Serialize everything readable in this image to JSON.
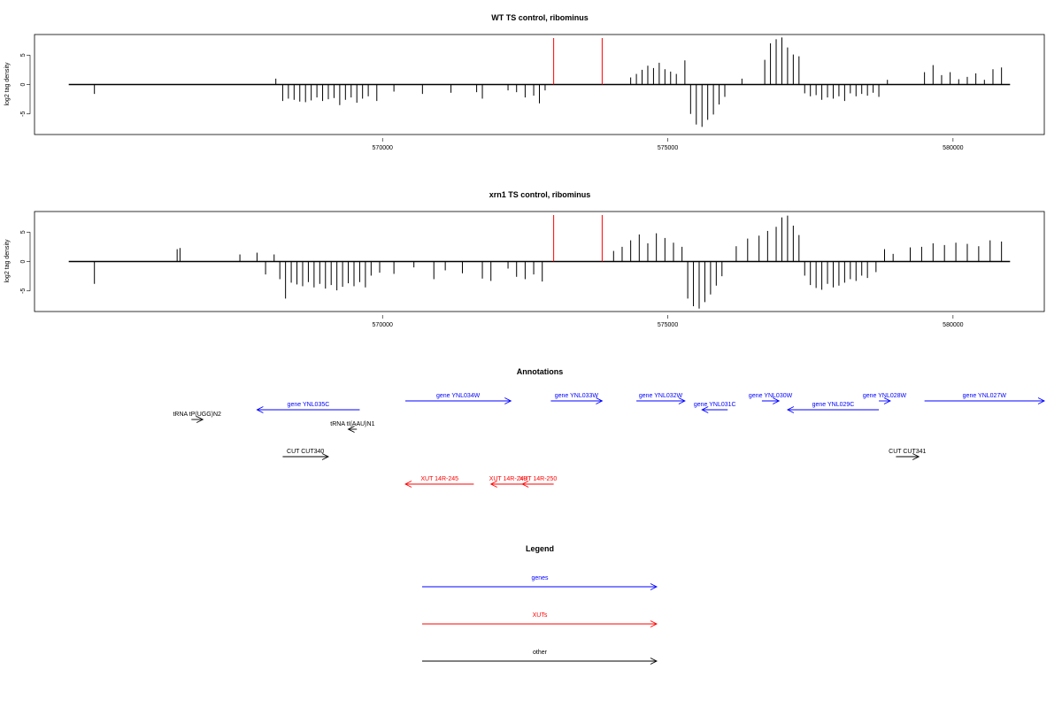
{
  "chart_data": [
    {
      "type": "bar",
      "title": "WT TS control, ribominus",
      "ylabel": "log2 tag density",
      "xlabel": "",
      "xlim": [
        563900,
        581600
      ],
      "ylim": [
        -8.5,
        8.5
      ],
      "x_ticks": [
        570000,
        575000,
        580000
      ],
      "x_tick_labels": [
        "570000",
        "575000",
        "580000"
      ],
      "y_ticks": [
        -5,
        0,
        5
      ],
      "y_tick_labels": [
        "-5",
        "0",
        "5"
      ],
      "baseline": [
        564500,
        581000
      ],
      "markers": [
        573000,
        573850
      ],
      "marker_color": "#ff0000",
      "bar_color": "#000000",
      "x": [
        564950,
        568130,
        568250,
        568350,
        568450,
        568550,
        568650,
        568750,
        568850,
        568950,
        569050,
        569150,
        569250,
        569350,
        569450,
        569550,
        569650,
        569750,
        569900,
        570200,
        570700,
        571200,
        571650,
        571750,
        572200,
        572350,
        572500,
        572650,
        572750,
        572850,
        574350,
        574450,
        574550,
        574650,
        574750,
        574850,
        574950,
        575050,
        575150,
        575300,
        575400,
        575500,
        575600,
        575700,
        575800,
        575900,
        576000,
        576300,
        576700,
        576800,
        576900,
        577000,
        577100,
        577200,
        577300,
        577400,
        577500,
        577600,
        577700,
        577800,
        577900,
        578000,
        578100,
        578200,
        578300,
        578400,
        578500,
        578600,
        578700,
        578850,
        579500,
        579650,
        579800,
        579950,
        580100,
        580250,
        580400,
        580550,
        580700,
        580850
      ],
      "values": [
        -1.6,
        1.0,
        -2.8,
        -2.4,
        -2.6,
        -2.9,
        -3.0,
        -2.7,
        -2.2,
        -2.8,
        -2.5,
        -2.3,
        -3.5,
        -2.6,
        -2.2,
        -3.1,
        -2.4,
        -2.0,
        -2.8,
        -1.2,
        -1.6,
        -1.4,
        -1.3,
        -2.4,
        -1.0,
        -1.3,
        -2.2,
        -1.9,
        -3.2,
        -1.0,
        1.2,
        1.8,
        2.5,
        3.2,
        2.8,
        3.7,
        2.6,
        2.2,
        1.8,
        4.1,
        -5.0,
        -6.8,
        -7.2,
        -6.0,
        -5.1,
        -3.4,
        -2.1,
        1.0,
        4.2,
        7.0,
        7.7,
        8.0,
        6.3,
        5.1,
        4.8,
        -1.5,
        -2.0,
        -1.8,
        -2.6,
        -2.2,
        -2.4,
        -2.0,
        -2.8,
        -1.5,
        -2.0,
        -1.6,
        -1.9,
        -1.4,
        -2.1,
        0.8,
        2.1,
        3.3,
        1.6,
        2.1,
        0.9,
        1.3,
        1.9,
        0.8,
        2.6,
        2.9
      ]
    },
    {
      "type": "bar",
      "title": "xrn1 TS control, ribominus",
      "ylabel": "log2 tag density",
      "xlabel": "",
      "xlim": [
        563900,
        581600
      ],
      "ylim": [
        -8.5,
        8.5
      ],
      "x_ticks": [
        570000,
        575000,
        580000
      ],
      "x_tick_labels": [
        "570000",
        "575000",
        "580000"
      ],
      "y_ticks": [
        -5,
        0,
        5
      ],
      "y_tick_labels": [
        "-5",
        "0",
        "5"
      ],
      "baseline": [
        564500,
        581000
      ],
      "markers": [
        573000,
        573850
      ],
      "marker_color": "#ff0000",
      "bar_color": "#000000",
      "x": [
        564950,
        566400,
        566450,
        567500,
        567800,
        567950,
        568100,
        568200,
        568300,
        568400,
        568500,
        568600,
        568700,
        568800,
        568900,
        569000,
        569100,
        569200,
        569300,
        569400,
        569500,
        569600,
        569700,
        569800,
        569950,
        570200,
        570550,
        570900,
        571100,
        571400,
        571750,
        571900,
        572200,
        572350,
        572500,
        572650,
        572800,
        574050,
        574200,
        574350,
        574500,
        574650,
        574800,
        574950,
        575100,
        575250,
        575350,
        575450,
        575550,
        575650,
        575750,
        575850,
        575950,
        576200,
        576400,
        576600,
        576750,
        576900,
        577000,
        577100,
        577200,
        577300,
        577400,
        577500,
        577600,
        577700,
        577800,
        577900,
        578000,
        578100,
        578200,
        578300,
        578400,
        578500,
        578650,
        578800,
        578950,
        579250,
        579450,
        579650,
        579850,
        580050,
        580250,
        580450,
        580650,
        580850
      ],
      "values": [
        -3.8,
        2.1,
        2.3,
        1.2,
        1.5,
        -2.2,
        1.2,
        -3.0,
        -6.3,
        -3.6,
        -3.9,
        -4.2,
        -3.5,
        -4.4,
        -3.8,
        -4.6,
        -4.0,
        -4.9,
        -4.3,
        -3.7,
        -4.2,
        -3.5,
        -4.4,
        -2.4,
        -1.9,
        -2.1,
        -1.0,
        -3.0,
        -1.5,
        -2.0,
        -2.9,
        -3.3,
        -1.2,
        -2.6,
        -3.0,
        -2.2,
        -3.4,
        1.8,
        2.5,
        3.6,
        4.6,
        3.1,
        4.8,
        4.0,
        3.2,
        2.5,
        -6.3,
        -7.6,
        -8.0,
        -6.9,
        -5.6,
        -4.1,
        -2.5,
        2.6,
        3.9,
        4.4,
        5.2,
        5.9,
        7.5,
        7.8,
        6.1,
        4.5,
        -2.4,
        -4.0,
        -4.5,
        -4.8,
        -3.8,
        -4.4,
        -4.1,
        -3.6,
        -3.0,
        -3.3,
        -2.4,
        -2.8,
        -1.8,
        2.1,
        1.3,
        2.4,
        2.5,
        3.1,
        2.8,
        3.2,
        3.0,
        2.6,
        3.6,
        3.4
      ]
    }
  ],
  "annotations": {
    "title": "Annotations",
    "features": [
      {
        "label": "tRNA tP(UGG)N2",
        "color": "#000000",
        "start": 566650,
        "end": 566850,
        "dir": "+",
        "row": 3
      },
      {
        "label": "gene YNL035C",
        "color": "#0000ff",
        "start": 567800,
        "end": 569600,
        "dir": "-",
        "row": 2
      },
      {
        "label": "tRNA tI(AAU)N1",
        "color": "#000000",
        "start": 569400,
        "end": 569550,
        "dir": "-",
        "row": 4
      },
      {
        "label": "gene YNL034W",
        "color": "#0000ff",
        "start": 570400,
        "end": 572250,
        "dir": "+",
        "row": 1
      },
      {
        "label": "gene YNL033W",
        "color": "#0000ff",
        "start": 572950,
        "end": 573850,
        "dir": "+",
        "row": 1
      },
      {
        "label": "gene YNL032W",
        "color": "#0000ff",
        "start": 574450,
        "end": 575300,
        "dir": "+",
        "row": 1
      },
      {
        "label": "gene YNL031C",
        "color": "#0000ff",
        "start": 575600,
        "end": 576050,
        "dir": "-",
        "row": 2
      },
      {
        "label": "gene YNL030W",
        "color": "#0000ff",
        "start": 576650,
        "end": 576950,
        "dir": "+",
        "row": 1
      },
      {
        "label": "gene YNL029C",
        "color": "#0000ff",
        "start": 577100,
        "end": 578700,
        "dir": "-",
        "row": 2
      },
      {
        "label": "gene YNL028W",
        "color": "#0000ff",
        "start": 578700,
        "end": 578900,
        "dir": "+",
        "row": 1
      },
      {
        "label": "gene YNL027W",
        "color": "#0000ff",
        "start": 579500,
        "end": 581600,
        "dir": "+",
        "row": 1
      },
      {
        "label": "CUT CUT340",
        "color": "#000000",
        "start": 568250,
        "end": 569050,
        "dir": "+",
        "row": 5
      },
      {
        "label": "CUT CUT341",
        "color": "#000000",
        "start": 579000,
        "end": 579400,
        "dir": "+",
        "row": 5
      },
      {
        "label": "XUT 14R-245",
        "color": "#ff0000",
        "start": 570400,
        "end": 571600,
        "dir": "-",
        "row": 6
      },
      {
        "label": "XUT 14R-248",
        "color": "#ff0000",
        "start": 571900,
        "end": 572500,
        "dir": "-",
        "row": 6
      },
      {
        "label": "XUT 14R-250",
        "color": "#ff0000",
        "start": 572450,
        "end": 573000,
        "dir": "-",
        "row": 6
      }
    ]
  },
  "legend": {
    "title": "Legend",
    "items": [
      {
        "label": "genes",
        "color": "#0000ff"
      },
      {
        "label": "XUTs",
        "color": "#ff0000"
      },
      {
        "label": "other",
        "color": "#000000"
      }
    ]
  }
}
